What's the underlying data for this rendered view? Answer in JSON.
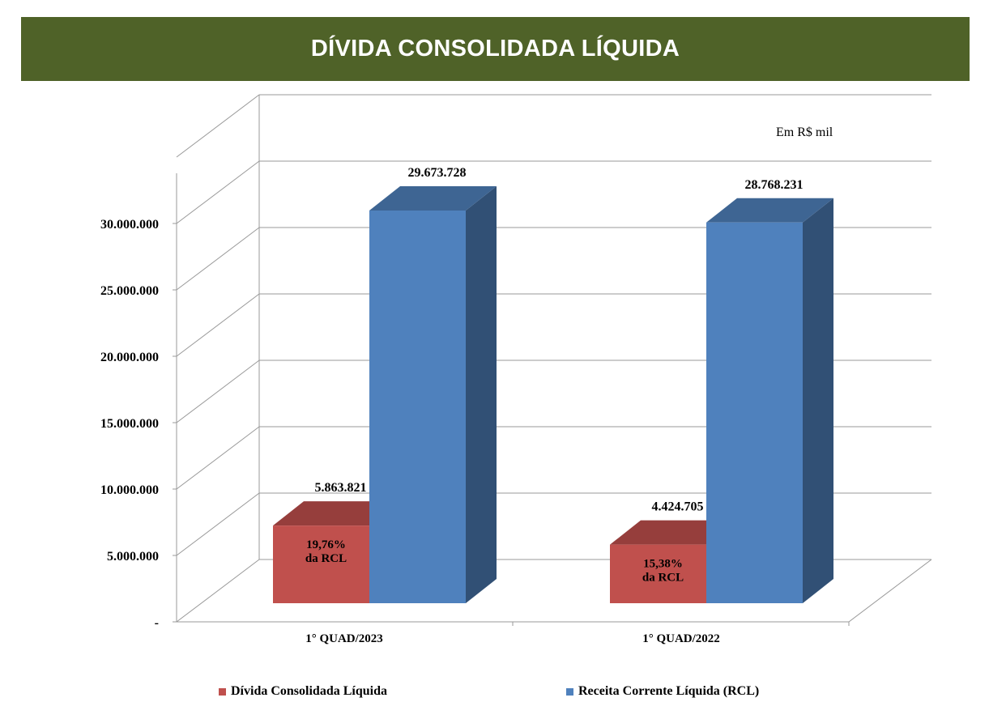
{
  "page": {
    "title": "DÍVIDA CONSOLIDADA LÍQUIDA",
    "unit_note": "Em R$ mil"
  },
  "chart_data": {
    "type": "bar",
    "title": "DÍVIDA CONSOLIDADA LÍQUIDA",
    "xlabel": "",
    "ylabel": "",
    "categories": [
      "1° QUAD/2023",
      "1° QUAD/2022"
    ],
    "series": [
      {
        "name": "Dívida Consolidada Líquida",
        "color": "#c0504d",
        "values": [
          5863821,
          4424705
        ],
        "value_labels": [
          "5.863.821",
          "4.424.705"
        ],
        "inner_labels": [
          [
            "19,76%",
            "da RCL"
          ],
          [
            "15,38%",
            "da RCL"
          ]
        ]
      },
      {
        "name": "Receita Corrente Líquida (RCL)",
        "color": "#4f81bd",
        "values": [
          29673728,
          28768231
        ],
        "value_labels": [
          "29.673.728",
          "28.768.231"
        ]
      }
    ],
    "yticks": [
      0,
      5000000,
      10000000,
      15000000,
      20000000,
      25000000,
      30000000
    ],
    "ytick_labels": [
      "-",
      "5.000.000",
      "10.000.000",
      "15.000.000",
      "20.000.000",
      "25.000.000",
      "30.000.000"
    ],
    "ylim": [
      0,
      35000000
    ],
    "grid": true,
    "three_d": true,
    "legend_position": "bottom"
  }
}
